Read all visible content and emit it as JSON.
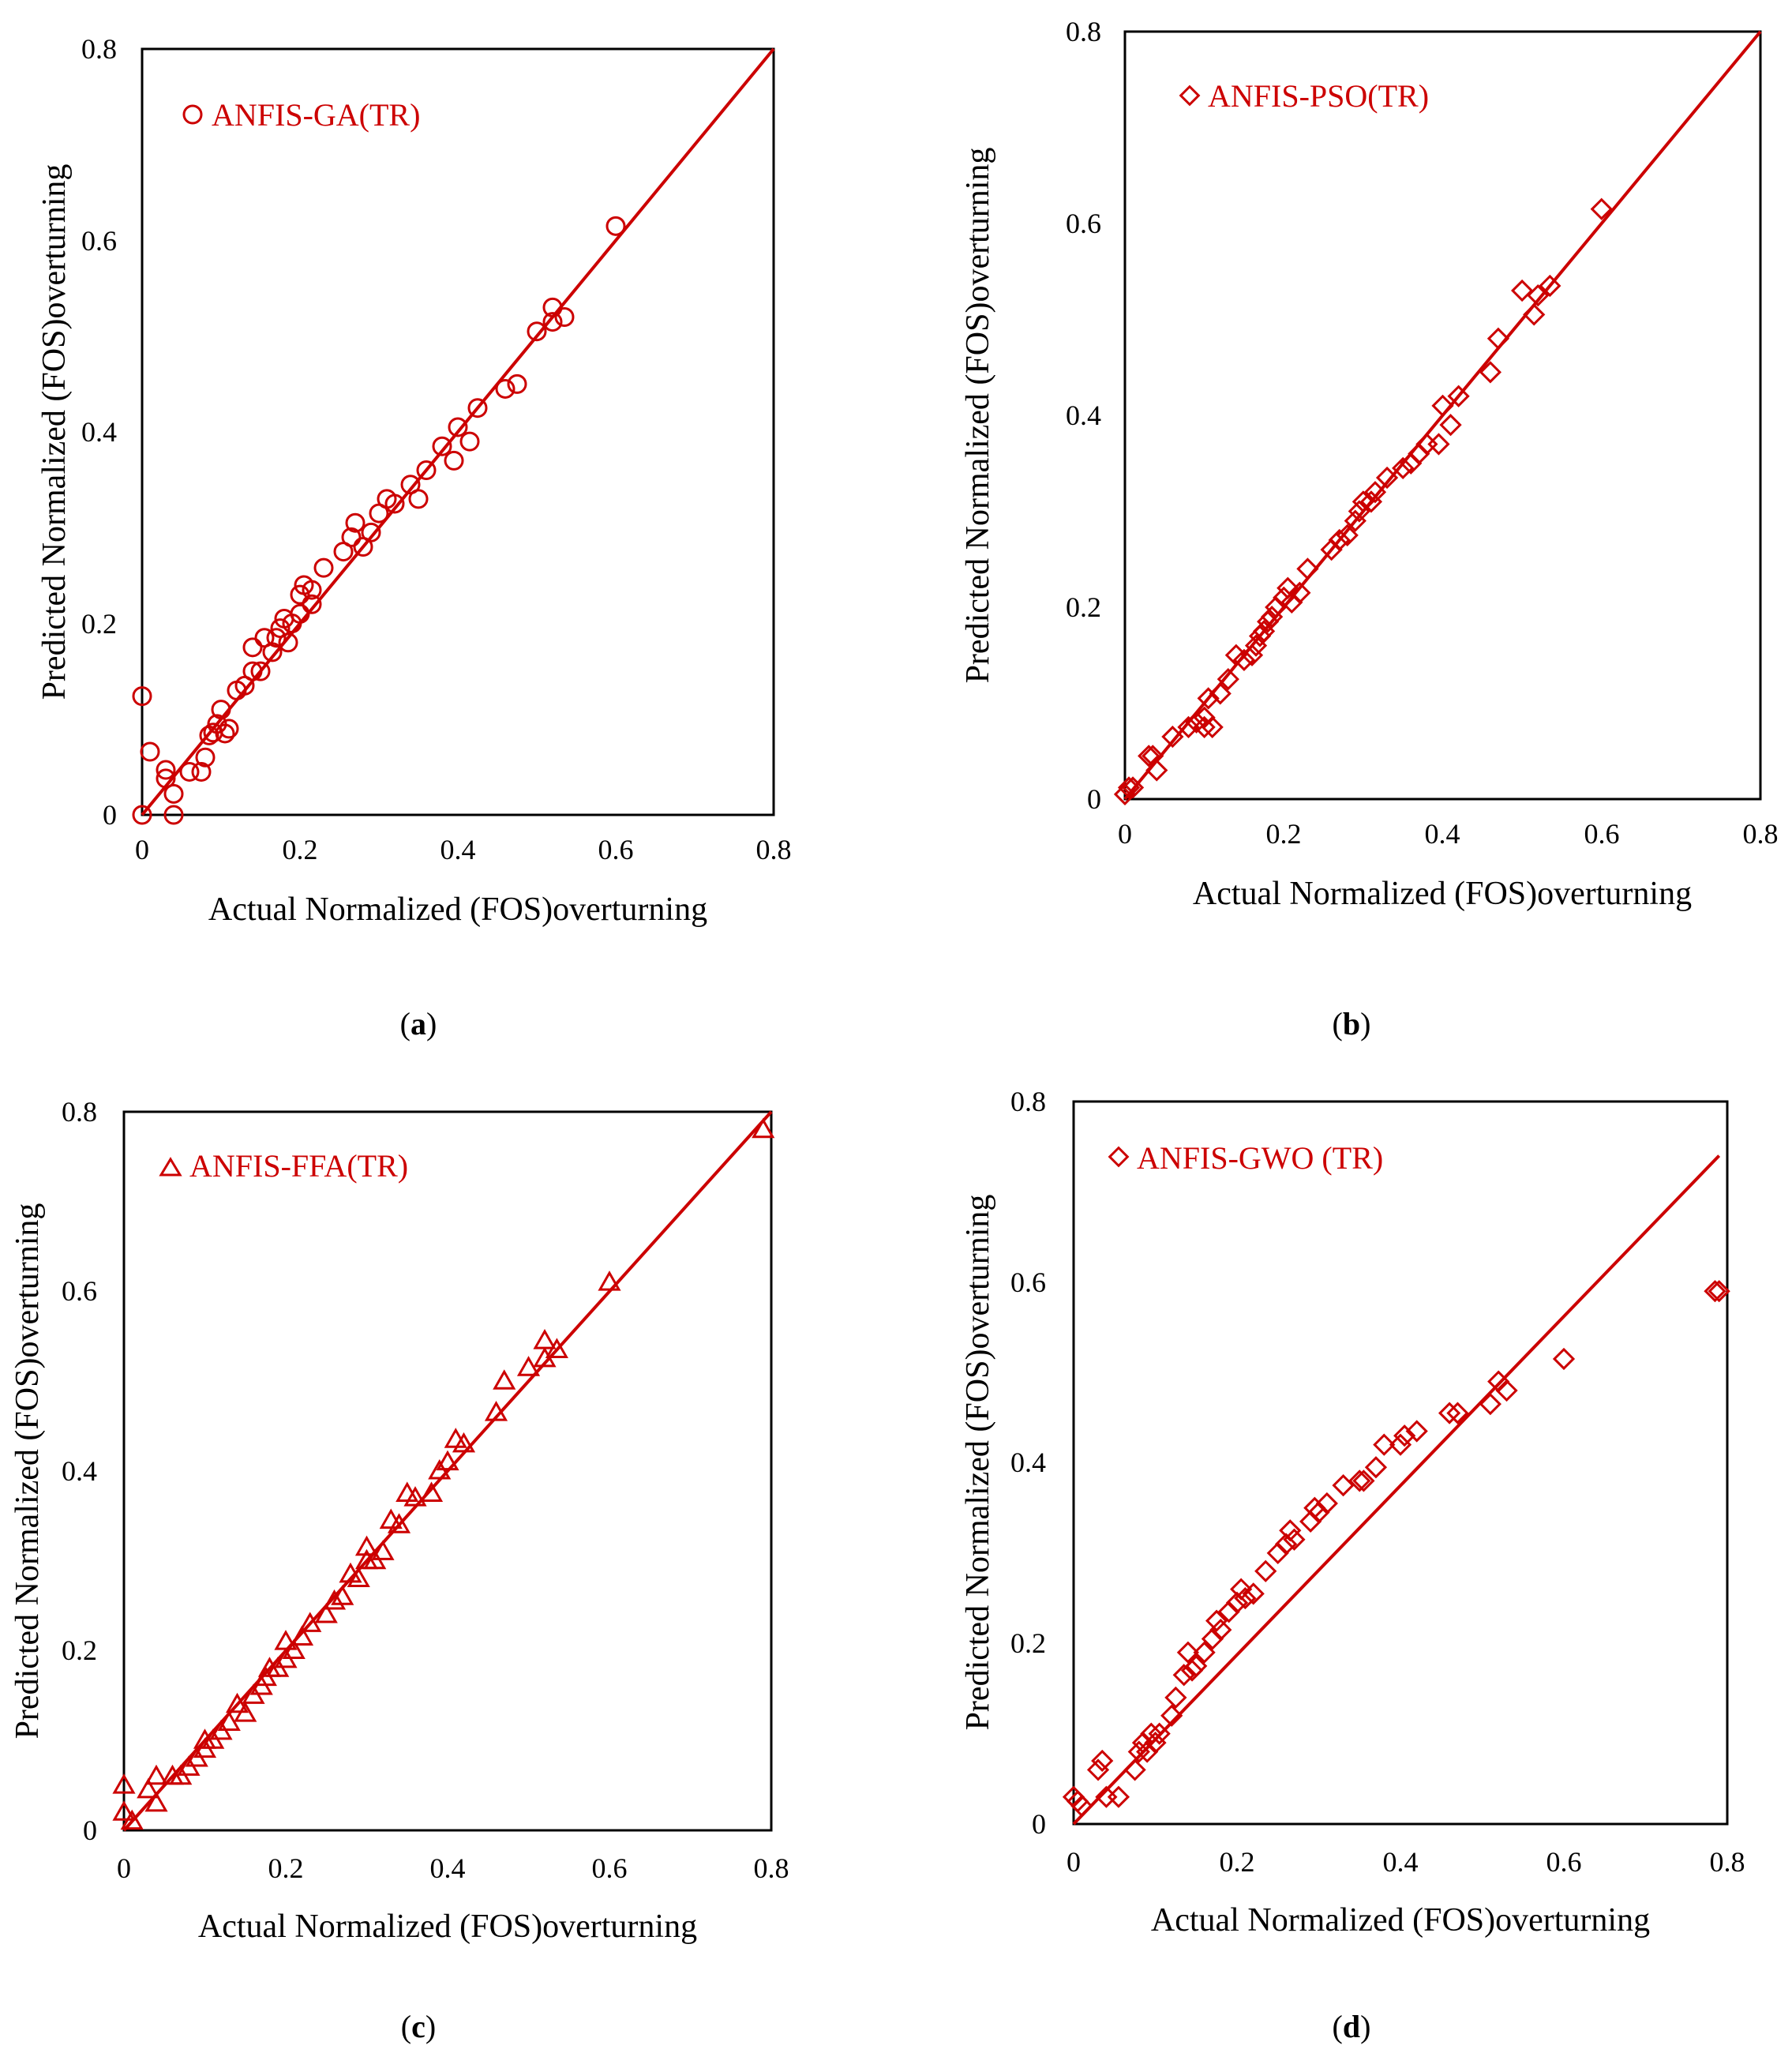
{
  "figure": {
    "accent_color": "#cc0000",
    "axis_color": "#000000"
  },
  "chart_data": [
    {
      "type": "scatter",
      "panel": "a",
      "caption": "a",
      "legend": "ANFIS-GA(TR)",
      "marker": "circle",
      "xlabel": "Actual Normalized (FOS)overturning",
      "ylabel": "Predicted Normalized (FOS)overturning",
      "xlim": [
        0,
        0.8
      ],
      "ylim": [
        0,
        0.8
      ],
      "xticks": [
        "0",
        "0.2",
        "0.4",
        "0.6",
        "0.8"
      ],
      "yticks": [
        "0",
        "0.2",
        "0.4",
        "0.6",
        "0.8"
      ],
      "fit_line": [
        [
          0,
          0
        ],
        [
          0.8,
          0.8
        ]
      ],
      "points": [
        [
          0.0,
          0.124
        ],
        [
          0.0,
          0.0
        ],
        [
          0.01,
          0.066
        ],
        [
          0.03,
          0.047
        ],
        [
          0.03,
          0.038
        ],
        [
          0.04,
          0.022
        ],
        [
          0.04,
          0.0
        ],
        [
          0.06,
          0.045
        ],
        [
          0.075,
          0.045
        ],
        [
          0.08,
          0.06
        ],
        [
          0.085,
          0.083
        ],
        [
          0.09,
          0.086
        ],
        [
          0.095,
          0.095
        ],
        [
          0.1,
          0.11
        ],
        [
          0.105,
          0.085
        ],
        [
          0.11,
          0.09
        ],
        [
          0.12,
          0.13
        ],
        [
          0.13,
          0.135
        ],
        [
          0.14,
          0.15
        ],
        [
          0.14,
          0.175
        ],
        [
          0.15,
          0.15
        ],
        [
          0.155,
          0.185
        ],
        [
          0.165,
          0.17
        ],
        [
          0.17,
          0.185
        ],
        [
          0.175,
          0.195
        ],
        [
          0.18,
          0.205
        ],
        [
          0.185,
          0.18
        ],
        [
          0.19,
          0.2
        ],
        [
          0.2,
          0.21
        ],
        [
          0.2,
          0.23
        ],
        [
          0.205,
          0.24
        ],
        [
          0.215,
          0.235
        ],
        [
          0.215,
          0.22
        ],
        [
          0.23,
          0.258
        ],
        [
          0.255,
          0.275
        ],
        [
          0.265,
          0.29
        ],
        [
          0.27,
          0.305
        ],
        [
          0.28,
          0.28
        ],
        [
          0.29,
          0.295
        ],
        [
          0.3,
          0.315
        ],
        [
          0.31,
          0.33
        ],
        [
          0.32,
          0.325
        ],
        [
          0.34,
          0.345
        ],
        [
          0.35,
          0.33
        ],
        [
          0.36,
          0.36
        ],
        [
          0.38,
          0.385
        ],
        [
          0.395,
          0.37
        ],
        [
          0.4,
          0.405
        ],
        [
          0.415,
          0.39
        ],
        [
          0.425,
          0.425
        ],
        [
          0.46,
          0.445
        ],
        [
          0.475,
          0.45
        ],
        [
          0.5,
          0.505
        ],
        [
          0.52,
          0.53
        ],
        [
          0.52,
          0.515
        ],
        [
          0.535,
          0.52
        ],
        [
          0.6,
          0.615
        ]
      ]
    },
    {
      "type": "scatter",
      "panel": "b",
      "caption": "b",
      "legend": "ANFIS-PSO(TR)",
      "marker": "diamond",
      "xlabel": "Actual Normalized (FOS)overturning",
      "ylabel": "Predicted Normalized (FOS)overturning",
      "xlim": [
        0,
        0.8
      ],
      "ylim": [
        0,
        0.8
      ],
      "xticks": [
        "0",
        "0.2",
        "0.4",
        "0.6",
        "0.8"
      ],
      "yticks": [
        "0",
        "0.2",
        "0.4",
        "0.6",
        "0.8"
      ],
      "fit_line": [
        [
          0,
          0
        ],
        [
          0.8,
          0.8
        ]
      ],
      "points": [
        [
          0.0,
          0.005
        ],
        [
          0.005,
          0.012
        ],
        [
          0.01,
          0.012
        ],
        [
          0.03,
          0.045
        ],
        [
          0.035,
          0.045
        ],
        [
          0.04,
          0.03
        ],
        [
          0.06,
          0.065
        ],
        [
          0.08,
          0.075
        ],
        [
          0.09,
          0.08
        ],
        [
          0.1,
          0.085
        ],
        [
          0.1,
          0.075
        ],
        [
          0.105,
          0.105
        ],
        [
          0.11,
          0.075
        ],
        [
          0.12,
          0.11
        ],
        [
          0.13,
          0.125
        ],
        [
          0.14,
          0.15
        ],
        [
          0.15,
          0.145
        ],
        [
          0.16,
          0.15
        ],
        [
          0.165,
          0.16
        ],
        [
          0.17,
          0.17
        ],
        [
          0.175,
          0.175
        ],
        [
          0.18,
          0.185
        ],
        [
          0.185,
          0.19
        ],
        [
          0.19,
          0.2
        ],
        [
          0.2,
          0.21
        ],
        [
          0.205,
          0.22
        ],
        [
          0.21,
          0.205
        ],
        [
          0.22,
          0.215
        ],
        [
          0.23,
          0.24
        ],
        [
          0.26,
          0.26
        ],
        [
          0.27,
          0.27
        ],
        [
          0.28,
          0.275
        ],
        [
          0.29,
          0.29
        ],
        [
          0.295,
          0.3
        ],
        [
          0.3,
          0.31
        ],
        [
          0.31,
          0.31
        ],
        [
          0.315,
          0.32
        ],
        [
          0.33,
          0.335
        ],
        [
          0.35,
          0.345
        ],
        [
          0.36,
          0.35
        ],
        [
          0.37,
          0.36
        ],
        [
          0.38,
          0.37
        ],
        [
          0.395,
          0.37
        ],
        [
          0.4,
          0.41
        ],
        [
          0.41,
          0.39
        ],
        [
          0.42,
          0.42
        ],
        [
          0.46,
          0.445
        ],
        [
          0.47,
          0.48
        ],
        [
          0.5,
          0.53
        ],
        [
          0.515,
          0.505
        ],
        [
          0.52,
          0.525
        ],
        [
          0.535,
          0.535
        ],
        [
          0.6,
          0.615
        ]
      ]
    },
    {
      "type": "scatter",
      "panel": "c",
      "caption": "c",
      "legend": "ANFIS-FFA(TR)",
      "marker": "triangle",
      "xlabel": "Actual Normalized (FOS)overturning",
      "ylabel": "Predicted Normalized (FOS)overturning",
      "xlim": [
        0,
        0.8
      ],
      "ylim": [
        0,
        0.8
      ],
      "xticks": [
        "0",
        "0.2",
        "0.4",
        "0.6",
        "0.8"
      ],
      "yticks": [
        "0",
        "0.2",
        "0.4",
        "0.6",
        "0.8"
      ],
      "fit_line": [
        [
          0,
          0
        ],
        [
          0.8,
          0.8
        ]
      ],
      "points": [
        [
          0.0,
          0.05
        ],
        [
          0.0,
          0.02
        ],
        [
          0.01,
          0.01
        ],
        [
          0.03,
          0.045
        ],
        [
          0.04,
          0.06
        ],
        [
          0.04,
          0.03
        ],
        [
          0.06,
          0.06
        ],
        [
          0.07,
          0.06
        ],
        [
          0.08,
          0.07
        ],
        [
          0.09,
          0.08
        ],
        [
          0.1,
          0.09
        ],
        [
          0.1,
          0.1
        ],
        [
          0.11,
          0.1
        ],
        [
          0.12,
          0.11
        ],
        [
          0.13,
          0.12
        ],
        [
          0.14,
          0.14
        ],
        [
          0.15,
          0.13
        ],
        [
          0.16,
          0.15
        ],
        [
          0.17,
          0.16
        ],
        [
          0.175,
          0.17
        ],
        [
          0.18,
          0.18
        ],
        [
          0.19,
          0.18
        ],
        [
          0.2,
          0.19
        ],
        [
          0.2,
          0.21
        ],
        [
          0.21,
          0.2
        ],
        [
          0.22,
          0.215
        ],
        [
          0.23,
          0.23
        ],
        [
          0.25,
          0.24
        ],
        [
          0.26,
          0.255
        ],
        [
          0.27,
          0.26
        ],
        [
          0.28,
          0.285
        ],
        [
          0.29,
          0.28
        ],
        [
          0.3,
          0.3
        ],
        [
          0.3,
          0.315
        ],
        [
          0.31,
          0.3
        ],
        [
          0.32,
          0.31
        ],
        [
          0.33,
          0.345
        ],
        [
          0.34,
          0.34
        ],
        [
          0.35,
          0.375
        ],
        [
          0.36,
          0.37
        ],
        [
          0.38,
          0.375
        ],
        [
          0.39,
          0.4
        ],
        [
          0.4,
          0.41
        ],
        [
          0.41,
          0.435
        ],
        [
          0.42,
          0.43
        ],
        [
          0.46,
          0.465
        ],
        [
          0.47,
          0.5
        ],
        [
          0.5,
          0.515
        ],
        [
          0.52,
          0.545
        ],
        [
          0.52,
          0.525
        ],
        [
          0.535,
          0.535
        ],
        [
          0.6,
          0.61
        ],
        [
          0.79,
          0.78
        ]
      ]
    },
    {
      "type": "scatter",
      "panel": "d",
      "caption": "d",
      "legend": "ANFIS-GWO (TR)",
      "marker": "diamond",
      "xlabel": "Actual Normalized (FOS)overturning",
      "ylabel": "Predicted Normalized (FOS)overturning",
      "xlim": [
        0,
        0.8
      ],
      "ylim": [
        0,
        0.8
      ],
      "xticks": [
        "0",
        "0.2",
        "0.4",
        "0.6",
        "0.8"
      ],
      "yticks": [
        "0",
        "0.2",
        "0.4",
        "0.6",
        "0.8"
      ],
      "fit_line": [
        [
          0,
          0
        ],
        [
          0.79,
          0.74
        ]
      ],
      "points": [
        [
          0.0,
          0.03
        ],
        [
          0.005,
          0.025
        ],
        [
          0.01,
          0.02
        ],
        [
          0.03,
          0.06
        ],
        [
          0.035,
          0.07
        ],
        [
          0.04,
          0.03
        ],
        [
          0.055,
          0.03
        ],
        [
          0.075,
          0.06
        ],
        [
          0.08,
          0.08
        ],
        [
          0.085,
          0.09
        ],
        [
          0.09,
          0.08
        ],
        [
          0.095,
          0.1
        ],
        [
          0.1,
          0.09
        ],
        [
          0.105,
          0.1
        ],
        [
          0.12,
          0.12
        ],
        [
          0.125,
          0.14
        ],
        [
          0.135,
          0.165
        ],
        [
          0.14,
          0.19
        ],
        [
          0.145,
          0.17
        ],
        [
          0.15,
          0.175
        ],
        [
          0.16,
          0.19
        ],
        [
          0.17,
          0.205
        ],
        [
          0.175,
          0.225
        ],
        [
          0.18,
          0.215
        ],
        [
          0.19,
          0.235
        ],
        [
          0.2,
          0.245
        ],
        [
          0.205,
          0.26
        ],
        [
          0.21,
          0.25
        ],
        [
          0.22,
          0.255
        ],
        [
          0.235,
          0.28
        ],
        [
          0.25,
          0.3
        ],
        [
          0.26,
          0.31
        ],
        [
          0.265,
          0.325
        ],
        [
          0.27,
          0.315
        ],
        [
          0.29,
          0.335
        ],
        [
          0.295,
          0.35
        ],
        [
          0.3,
          0.345
        ],
        [
          0.31,
          0.355
        ],
        [
          0.33,
          0.375
        ],
        [
          0.35,
          0.38
        ],
        [
          0.355,
          0.38
        ],
        [
          0.37,
          0.395
        ],
        [
          0.38,
          0.42
        ],
        [
          0.4,
          0.42
        ],
        [
          0.405,
          0.43
        ],
        [
          0.42,
          0.435
        ],
        [
          0.46,
          0.455
        ],
        [
          0.47,
          0.455
        ],
        [
          0.51,
          0.465
        ],
        [
          0.52,
          0.49
        ],
        [
          0.53,
          0.48
        ],
        [
          0.6,
          0.515
        ],
        [
          0.785,
          0.59
        ],
        [
          0.79,
          0.59
        ]
      ]
    }
  ]
}
